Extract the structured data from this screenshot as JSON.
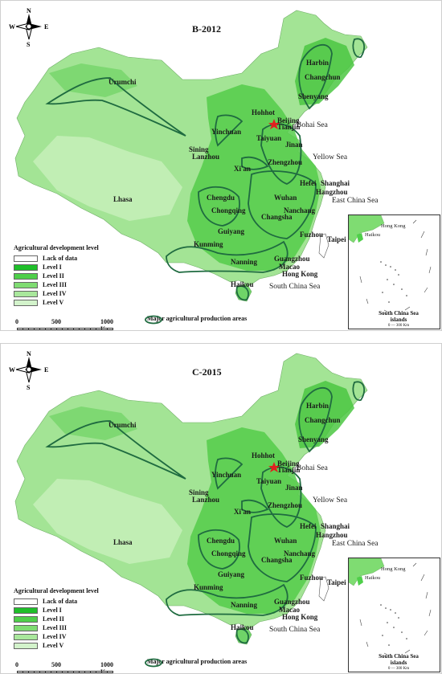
{
  "panels": [
    {
      "title": "B-2012"
    },
    {
      "title": "C-2015"
    }
  ],
  "compass": {
    "n": "N",
    "s": "S",
    "e": "E",
    "w": "W"
  },
  "cities": [
    {
      "key": "urumchi",
      "label": "Urumchi"
    },
    {
      "key": "harbin",
      "label": "Harbin"
    },
    {
      "key": "changchun",
      "label": "Changchun"
    },
    {
      "key": "shenyang",
      "label": "Shenyang"
    },
    {
      "key": "hohhot",
      "label": "Hohhot"
    },
    {
      "key": "beijing",
      "label": "Beijing"
    },
    {
      "key": "tianjin",
      "label": "Tianjin"
    },
    {
      "key": "yinchuan",
      "label": "Yinchuan"
    },
    {
      "key": "taiyuan",
      "label": "Taiyuan"
    },
    {
      "key": "jinan",
      "label": "Jinan"
    },
    {
      "key": "sining",
      "label": "Sining"
    },
    {
      "key": "lanzhou",
      "label": "Lanzhou"
    },
    {
      "key": "xian",
      "label": "Xi'an"
    },
    {
      "key": "zhengzhou",
      "label": "Zhengzhou"
    },
    {
      "key": "shanghai",
      "label": "Shanghai"
    },
    {
      "key": "hefei",
      "label": "Hefei"
    },
    {
      "key": "hangzhou",
      "label": "Hangzhou"
    },
    {
      "key": "lhasa",
      "label": "Lhasa"
    },
    {
      "key": "chengdu",
      "label": "Chengdu"
    },
    {
      "key": "wuhan",
      "label": "Wuhan"
    },
    {
      "key": "chongqing",
      "label": "Chongqing"
    },
    {
      "key": "changsha",
      "label": "Changsha"
    },
    {
      "key": "nanchang",
      "label": "Nanchang"
    },
    {
      "key": "guiyang",
      "label": "Guiyang"
    },
    {
      "key": "fuzhou",
      "label": "Fuzhou"
    },
    {
      "key": "taipei",
      "label": "Taipei"
    },
    {
      "key": "kunming",
      "label": "Kunming"
    },
    {
      "key": "nanning",
      "label": "Nanning"
    },
    {
      "key": "guangzhou",
      "label": "Guangzhou"
    },
    {
      "key": "macao",
      "label": "Macao"
    },
    {
      "key": "hongkong",
      "label": "Hong Kong"
    },
    {
      "key": "haikou",
      "label": "Haikou"
    }
  ],
  "seas": {
    "bohai": "Bohai Sea",
    "yellow": "Yellow Sea",
    "east_china": "East China Sea",
    "south_china": "South China Sea"
  },
  "legend": {
    "title": "Agricultural development level",
    "items": [
      {
        "label": "Lack of data",
        "color": "#ffffff"
      },
      {
        "label": "Level I",
        "color": "#1fbf2a"
      },
      {
        "label": "Level II",
        "color": "#4fcf4a"
      },
      {
        "label": "Level III",
        "color": "#7fdc72"
      },
      {
        "label": "Level IV",
        "color": "#a9e79c"
      },
      {
        "label": "Level V",
        "color": "#d3f3cb"
      }
    ]
  },
  "scale": {
    "zero": "0",
    "mid": "500",
    "end": "1000 Km"
  },
  "major_areas_label": "Major agricultural production areas",
  "inset": {
    "haikou": "Haikou",
    "hongkong": "Hong Kong",
    "caption_line1": "South China Sea",
    "caption_line2": "islands",
    "scale": "0 — 300 Km"
  }
}
